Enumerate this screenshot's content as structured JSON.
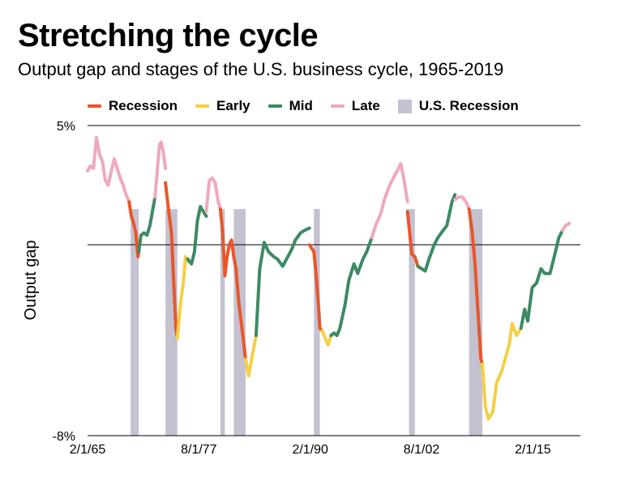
{
  "title": "Stretching the cycle",
  "subtitle": "Output gap and stages of the U.S. business cycle, 1965-2019",
  "legend": [
    {
      "label": "Recession",
      "color": "#e8562a",
      "kind": "line"
    },
    {
      "label": "Early",
      "color": "#f5cf44",
      "kind": "line"
    },
    {
      "label": "Mid",
      "color": "#3d8a63",
      "kind": "line"
    },
    {
      "label": "Late",
      "color": "#f0a8bd",
      "kind": "line"
    },
    {
      "label": "U.S. Recession",
      "color": "#c4c2d0",
      "kind": "box"
    }
  ],
  "chart_data": {
    "type": "line",
    "title": "Stretching the cycle",
    "subtitle": "Output gap and stages of the U.S. business cycle, 1965-2019",
    "ylabel": "Output gap",
    "xlabel": "",
    "ylim": [
      -8,
      5
    ],
    "xlim": [
      "1965-02-01",
      "2020-06-01"
    ],
    "y_tick_labels": [
      {
        "value": 5,
        "label": "5%"
      },
      {
        "value": -8,
        "label": "-8%"
      }
    ],
    "x_tick_labels": [
      {
        "value": "1965-02-01",
        "label": "2/1/65"
      },
      {
        "value": "1977-08-01",
        "label": "8/1/77"
      },
      {
        "value": "1990-02-01",
        "label": "2/1/90"
      },
      {
        "value": "2002-08-01",
        "label": "8/1/02"
      },
      {
        "value": "2015-02-01",
        "label": "2/1/15"
      }
    ],
    "grid": "horizontal lines at 5%, 0% and -8%",
    "legend_position": "top",
    "recession_shading": [
      {
        "start": "1969-12-01",
        "end": "1970-11-01"
      },
      {
        "start": "1973-11-01",
        "end": "1975-03-01"
      },
      {
        "start": "1980-01-01",
        "end": "1980-07-01"
      },
      {
        "start": "1981-07-01",
        "end": "1982-11-01"
      },
      {
        "start": "1990-07-01",
        "end": "1991-03-01"
      },
      {
        "start": "2001-03-01",
        "end": "2001-11-01"
      },
      {
        "start": "2007-12-01",
        "end": "2009-06-01"
      }
    ],
    "series": [
      {
        "name": "Late",
        "color": "#f0a8bd",
        "points": [
          [
            "1965-02-01",
            3.1
          ],
          [
            "1965-06-01",
            3.3
          ],
          [
            "1965-10-01",
            3.2
          ],
          [
            "1966-02-01",
            4.5
          ],
          [
            "1966-06-01",
            3.8
          ],
          [
            "1966-10-01",
            3.5
          ],
          [
            "1967-02-01",
            2.7
          ],
          [
            "1967-06-01",
            2.5
          ],
          [
            "1967-10-01",
            3.1
          ],
          [
            "1968-02-01",
            3.6
          ],
          [
            "1968-06-01",
            3.2
          ],
          [
            "1968-10-01",
            2.8
          ],
          [
            "1969-02-01",
            2.5
          ],
          [
            "1969-06-01",
            2.1
          ],
          [
            "1969-10-01",
            1.8
          ]
        ]
      },
      {
        "name": "Recession",
        "color": "#e8562a",
        "points": [
          [
            "1969-10-01",
            1.8
          ],
          [
            "1970-01-01",
            1.2
          ],
          [
            "1970-04-01",
            0.9
          ],
          [
            "1970-07-01",
            0.5
          ],
          [
            "1970-10-01",
            -0.5
          ],
          [
            "1970-11-01",
            -0.3
          ]
        ]
      },
      {
        "name": "Mid",
        "color": "#3d8a63",
        "points": [
          [
            "1970-11-01",
            -0.3
          ],
          [
            "1971-02-01",
            0.4
          ],
          [
            "1971-06-01",
            0.5
          ],
          [
            "1971-10-01",
            0.4
          ],
          [
            "1972-02-01",
            0.8
          ],
          [
            "1972-06-01",
            1.5
          ],
          [
            "1972-09-01",
            2.0
          ]
        ]
      },
      {
        "name": "Late",
        "color": "#f0a8bd",
        "points": [
          [
            "1972-09-01",
            2.0
          ],
          [
            "1973-01-01",
            3.5
          ],
          [
            "1973-03-01",
            4.2
          ],
          [
            "1973-05-01",
            4.3
          ],
          [
            "1973-08-01",
            3.9
          ],
          [
            "1973-11-01",
            3.2
          ]
        ]
      },
      {
        "name": "Recession",
        "color": "#e8562a",
        "points": [
          [
            "1973-11-01",
            2.6
          ],
          [
            "1974-03-01",
            1.5
          ],
          [
            "1974-07-01",
            0.5
          ],
          [
            "1974-10-01",
            -1.5
          ],
          [
            "1975-01-01",
            -3.5
          ],
          [
            "1975-03-01",
            -3.9
          ]
        ]
      },
      {
        "name": "Early",
        "color": "#f5cf44",
        "points": [
          [
            "1975-03-01",
            -3.9
          ],
          [
            "1975-07-01",
            -2.5
          ],
          [
            "1975-11-01",
            -1.6
          ],
          [
            "1976-02-01",
            -0.5
          ],
          [
            "1976-05-01",
            -0.7
          ]
        ]
      },
      {
        "name": "Mid",
        "color": "#3d8a63",
        "points": [
          [
            "1976-05-01",
            -0.6
          ],
          [
            "1976-10-01",
            -0.8
          ],
          [
            "1977-02-01",
            -0.3
          ],
          [
            "1977-06-01",
            1.0
          ],
          [
            "1977-10-01",
            1.6
          ],
          [
            "1978-02-01",
            1.4
          ],
          [
            "1978-06-01",
            1.2
          ]
        ]
      },
      {
        "name": "Late",
        "color": "#f0a8bd",
        "points": [
          [
            "1978-06-01",
            1.4
          ],
          [
            "1978-10-01",
            2.7
          ],
          [
            "1979-02-01",
            2.8
          ],
          [
            "1979-06-01",
            2.6
          ],
          [
            "1979-10-01",
            1.8
          ],
          [
            "1980-01-01",
            1.5
          ]
        ]
      },
      {
        "name": "Recession",
        "color": "#e8562a",
        "points": [
          [
            "1980-01-01",
            1.5
          ],
          [
            "1980-04-01",
            0.5
          ],
          [
            "1980-07-01",
            -1.3
          ],
          [
            "1980-10-01",
            -0.5
          ],
          [
            "1981-01-01",
            0.0
          ],
          [
            "1981-04-01",
            0.2
          ],
          [
            "1981-07-01",
            -0.5
          ],
          [
            "1981-10-01",
            -1.0
          ],
          [
            "1982-02-01",
            -2.5
          ],
          [
            "1982-06-01",
            -3.5
          ],
          [
            "1982-11-01",
            -4.8
          ]
        ]
      },
      {
        "name": "Early",
        "color": "#f5cf44",
        "points": [
          [
            "1982-11-01",
            -4.8
          ],
          [
            "1983-03-01",
            -5.5
          ],
          [
            "1983-07-01",
            -4.8
          ],
          [
            "1984-01-01",
            -3.8
          ]
        ]
      },
      {
        "name": "Mid",
        "color": "#3d8a63",
        "points": [
          [
            "1984-01-01",
            -3.8
          ],
          [
            "1984-06-01",
            -1.0
          ],
          [
            "1984-12-01",
            0.1
          ],
          [
            "1985-06-01",
            -0.3
          ],
          [
            "1986-01-01",
            -0.5
          ],
          [
            "1986-06-01",
            -0.6
          ],
          [
            "1987-01-01",
            -0.9
          ],
          [
            "1987-06-01",
            -0.6
          ],
          [
            "1988-01-01",
            -0.2
          ],
          [
            "1988-06-01",
            0.2
          ],
          [
            "1989-01-01",
            0.5
          ],
          [
            "1989-06-01",
            0.6
          ],
          [
            "1990-01-01",
            0.7
          ]
        ]
      },
      {
        "name": "Recession",
        "color": "#e8562a",
        "points": [
          [
            "1990-01-01",
            0.0
          ],
          [
            "1990-07-01",
            -0.3
          ],
          [
            "1990-10-01",
            -1.3
          ],
          [
            "1991-01-01",
            -2.5
          ],
          [
            "1991-03-01",
            -3.5
          ],
          [
            "1991-06-01",
            -3.6
          ]
        ]
      },
      {
        "name": "Early",
        "color": "#f5cf44",
        "points": [
          [
            "1991-06-01",
            -3.6
          ],
          [
            "1991-10-01",
            -3.9
          ],
          [
            "1992-02-01",
            -4.2
          ],
          [
            "1992-06-01",
            -3.8
          ]
        ]
      },
      {
        "name": "Mid",
        "color": "#3d8a63",
        "points": [
          [
            "1992-06-01",
            -3.8
          ],
          [
            "1992-10-01",
            -3.7
          ],
          [
            "1993-02-01",
            -3.8
          ],
          [
            "1993-06-01",
            -3.5
          ],
          [
            "1994-01-01",
            -2.5
          ],
          [
            "1994-06-01",
            -1.5
          ],
          [
            "1995-01-01",
            -0.8
          ],
          [
            "1995-06-01",
            -1.2
          ],
          [
            "1996-01-01",
            -0.6
          ],
          [
            "1996-06-01",
            -0.3
          ],
          [
            "1997-01-01",
            0.3
          ]
        ]
      },
      {
        "name": "Late",
        "color": "#f0a8bd",
        "points": [
          [
            "1997-01-01",
            0.3
          ],
          [
            "1997-06-01",
            0.8
          ],
          [
            "1998-01-01",
            1.3
          ],
          [
            "1998-06-01",
            1.9
          ],
          [
            "1999-01-01",
            2.5
          ],
          [
            "1999-06-01",
            2.8
          ],
          [
            "2000-01-01",
            3.2
          ],
          [
            "2000-04-01",
            3.4
          ],
          [
            "2000-08-01",
            2.8
          ],
          [
            "2001-01-01",
            1.8
          ]
        ]
      },
      {
        "name": "Recession",
        "color": "#e8562a",
        "points": [
          [
            "2001-01-01",
            1.4
          ],
          [
            "2001-04-01",
            0.5
          ],
          [
            "2001-07-01",
            -0.4
          ],
          [
            "2001-11-01",
            -0.5
          ],
          [
            "2002-03-01",
            -0.9
          ]
        ]
      },
      {
        "name": "Mid",
        "color": "#3d8a63",
        "points": [
          [
            "2002-03-01",
            -0.9
          ],
          [
            "2002-08-01",
            -1.0
          ],
          [
            "2003-01-01",
            -1.1
          ],
          [
            "2003-06-01",
            -0.6
          ],
          [
            "2004-01-01",
            0.0
          ],
          [
            "2004-06-01",
            0.3
          ],
          [
            "2005-01-01",
            0.6
          ],
          [
            "2005-06-01",
            0.8
          ],
          [
            "2006-01-01",
            1.8
          ],
          [
            "2006-05-01",
            2.1
          ]
        ]
      },
      {
        "name": "Late",
        "color": "#f0a8bd",
        "points": [
          [
            "2006-05-01",
            1.9
          ],
          [
            "2006-10-01",
            2.0
          ],
          [
            "2007-03-01",
            2.0
          ],
          [
            "2007-08-01",
            1.8
          ],
          [
            "2007-12-01",
            1.5
          ]
        ]
      },
      {
        "name": "Recession",
        "color": "#e8562a",
        "points": [
          [
            "2007-12-01",
            1.5
          ],
          [
            "2008-04-01",
            0.6
          ],
          [
            "2008-08-01",
            -0.8
          ],
          [
            "2008-12-01",
            -2.8
          ],
          [
            "2009-04-01",
            -4.8
          ],
          [
            "2009-06-01",
            -5.0
          ]
        ]
      },
      {
        "name": "Early",
        "color": "#f5cf44",
        "points": [
          [
            "2009-06-01",
            -5.0
          ],
          [
            "2009-10-01",
            -6.8
          ],
          [
            "2010-02-01",
            -7.3
          ],
          [
            "2010-08-01",
            -7.0
          ],
          [
            "2011-01-01",
            -5.8
          ],
          [
            "2011-08-01",
            -5.3
          ],
          [
            "2012-06-01",
            -4.2
          ],
          [
            "2012-10-01",
            -3.3
          ],
          [
            "2013-04-01",
            -3.8
          ],
          [
            "2013-10-01",
            -3.5
          ]
        ]
      },
      {
        "name": "Mid",
        "color": "#3d8a63",
        "points": [
          [
            "2013-10-01",
            -3.5
          ],
          [
            "2014-03-01",
            -2.7
          ],
          [
            "2014-07-01",
            -3.2
          ],
          [
            "2015-01-01",
            -1.8
          ],
          [
            "2015-07-01",
            -1.6
          ],
          [
            "2016-01-01",
            -1.0
          ],
          [
            "2016-06-01",
            -1.2
          ],
          [
            "2017-01-01",
            -1.2
          ],
          [
            "2017-06-01",
            -0.6
          ],
          [
            "2018-01-01",
            0.3
          ],
          [
            "2018-06-01",
            0.6
          ]
        ]
      },
      {
        "name": "Late",
        "color": "#f0a8bd",
        "points": [
          [
            "2018-06-01",
            0.6
          ],
          [
            "2018-10-01",
            0.8
          ],
          [
            "2019-03-01",
            0.9
          ]
        ]
      }
    ]
  }
}
